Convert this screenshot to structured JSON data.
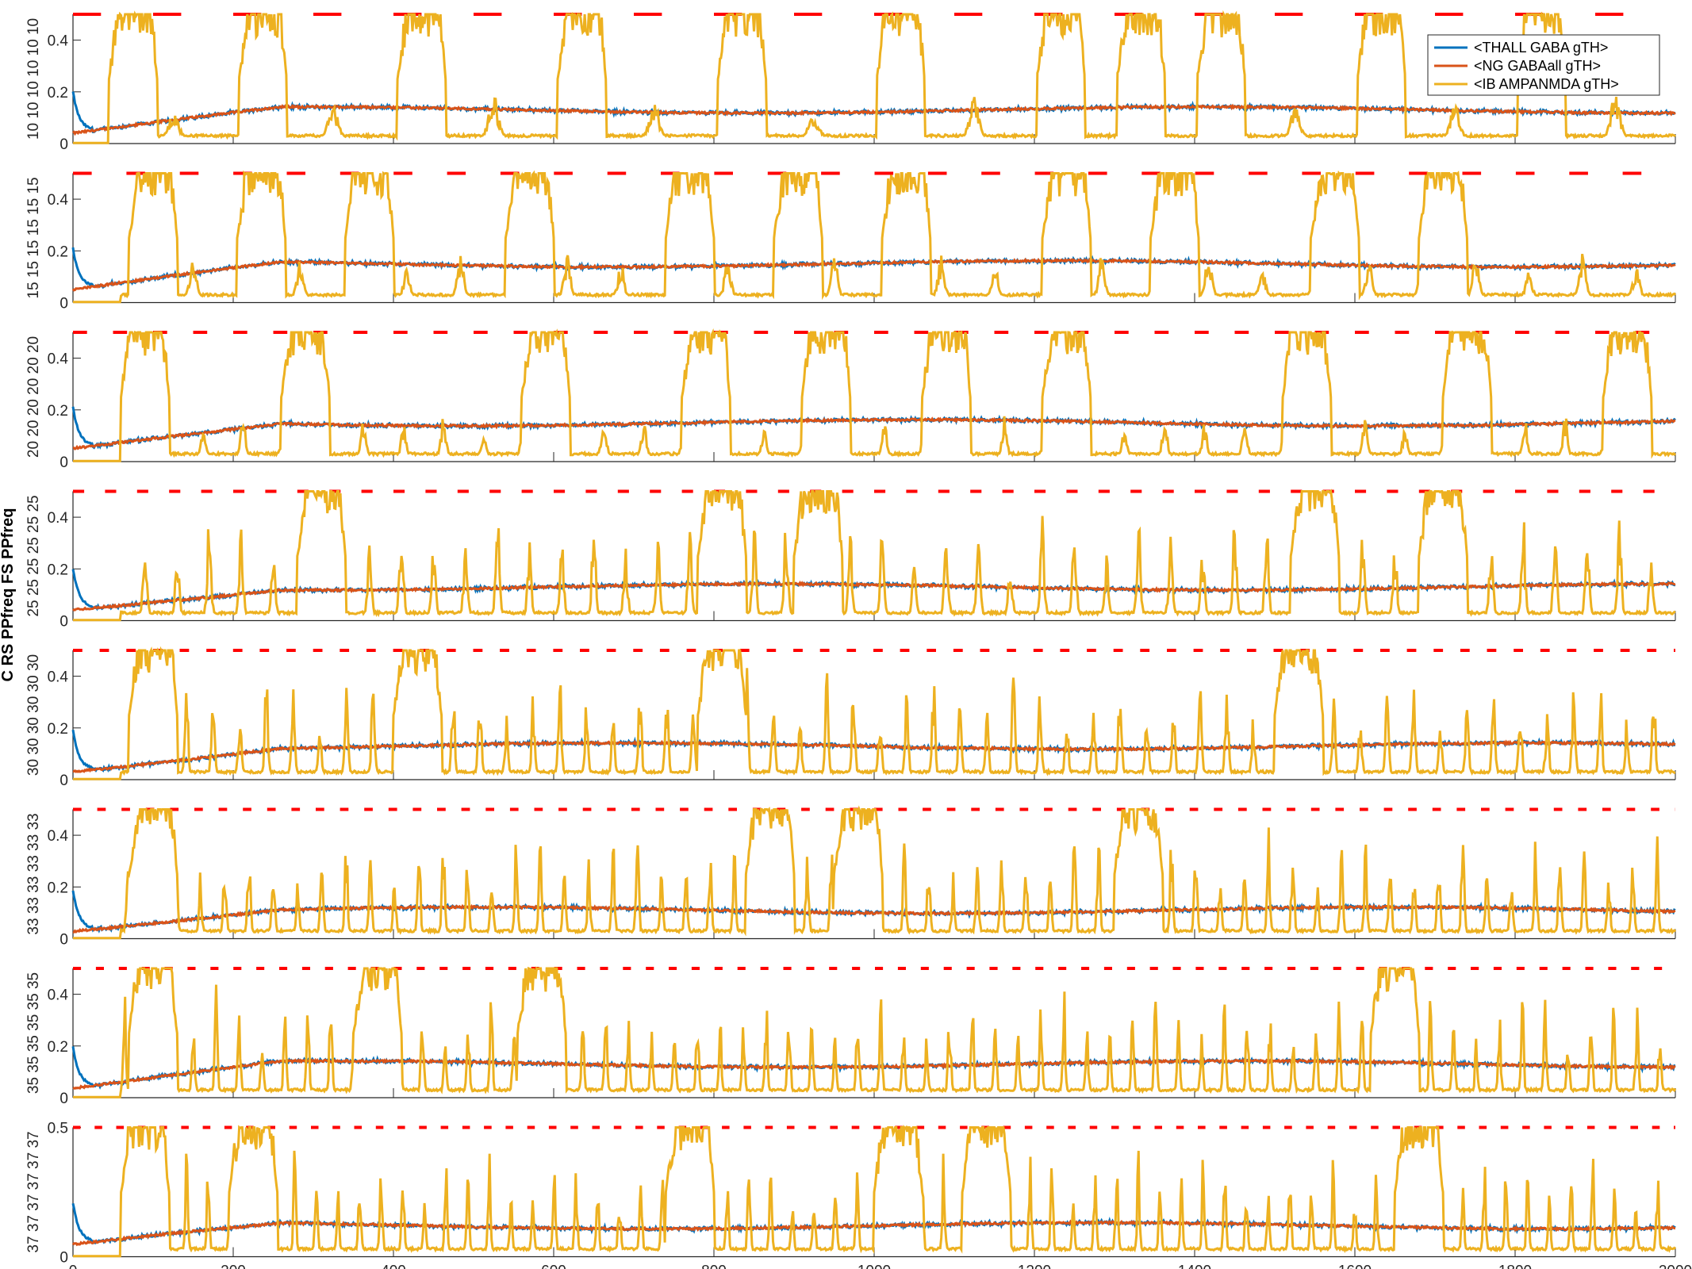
{
  "chart_data": {
    "type": "line",
    "x_axis": {
      "ticks": [
        0,
        200,
        400,
        600,
        800,
        1000,
        1200,
        1400,
        1600,
        1800,
        2000
      ],
      "tick_labels": [
        "0",
        "200",
        "400",
        "600",
        "800",
        "1000",
        "1200",
        "1400",
        "1600",
        "1800",
        "2000"
      ],
      "range": [
        0,
        2000
      ]
    },
    "ylabel": "C RS PPfreq FS PPfreq",
    "legend": {
      "placement": "top-right",
      "entries": [
        {
          "name": "<THALL GABA gTH>",
          "color": "#0072BD"
        },
        {
          "name": "<NG GABAall gTH>",
          "color": "#D95319"
        },
        {
          "name": "<IB AMPANMDA gTH>",
          "color": "#EDB120"
        }
      ]
    },
    "stimulus_marker": {
      "color": "#FF0000",
      "level": 0.5
    },
    "panels": [
      {
        "row_label": "10 10 10 10 10 10",
        "y_range": [
          0,
          0.5
        ],
        "ytick_labels": [
          "0",
          "0.2",
          "0.4"
        ],
        "stim_freq": 10,
        "stim_period_ms": 100,
        "baseline_blue": 0.13,
        "baseline_orange": 0.13,
        "burst_starts": [
          45,
          207,
          405,
          605,
          805,
          1003,
          1203,
          1303,
          1403,
          1603,
          1803
        ]
      },
      {
        "row_label": "15 15 15 15 15 15",
        "y_range": [
          0,
          0.5
        ],
        "ytick_labels": [
          "0",
          "0.2",
          "0.4"
        ],
        "stim_freq": 15,
        "stim_period_ms": 66.7,
        "baseline_blue": 0.15,
        "baseline_orange": 0.15,
        "burst_starts": [
          70,
          205,
          340,
          540,
          740,
          875,
          1010,
          1210,
          1345,
          1545,
          1680
        ]
      },
      {
        "row_label": "20 20 20 20 20 20",
        "y_range": [
          0,
          0.5
        ],
        "ytick_labels": [
          "0",
          "0.2",
          "0.4"
        ],
        "stim_freq": 20,
        "stim_period_ms": 50,
        "baseline_blue": 0.15,
        "baseline_orange": 0.15,
        "burst_starts": [
          60,
          260,
          560,
          760,
          910,
          1060,
          1210,
          1510,
          1710,
          1910
        ]
      },
      {
        "row_label": "25 25 25 25 25 25",
        "y_range": [
          0,
          0.5
        ],
        "ytick_labels": [
          "0",
          "0.2",
          "0.4"
        ],
        "stim_freq": 25,
        "stim_period_ms": 40,
        "baseline_blue": 0.13,
        "baseline_orange": 0.13,
        "burst_starts": [
          280,
          780,
          900,
          1520,
          1680
        ]
      },
      {
        "row_label": "30 30 30 30 30 30",
        "y_range": [
          0,
          0.5
        ],
        "ytick_labels": [
          "0",
          "0.2",
          "0.4"
        ],
        "stim_freq": 30,
        "stim_period_ms": 33.3,
        "baseline_blue": 0.13,
        "baseline_orange": 0.13,
        "burst_starts": [
          70,
          400,
          780,
          1500
        ]
      },
      {
        "row_label": "33 33 33 33 33 33",
        "y_range": [
          0,
          0.5
        ],
        "ytick_labels": [
          "0",
          "0.2",
          "0.4"
        ],
        "stim_freq": 33,
        "stim_period_ms": 30.3,
        "baseline_blue": 0.11,
        "baseline_orange": 0.11,
        "burst_starts": [
          70,
          840,
          950,
          1300
        ]
      },
      {
        "row_label": "35 35 35 35 35 35",
        "y_range": [
          0,
          0.5
        ],
        "ytick_labels": [
          "0",
          "0.2",
          "0.4"
        ],
        "stim_freq": 35,
        "stim_period_ms": 28.6,
        "baseline_blue": 0.13,
        "baseline_orange": 0.13,
        "burst_starts": [
          70,
          350,
          555,
          1620
        ]
      },
      {
        "row_label": "37 37 37 37 37 37",
        "y_range": [
          0,
          0.5
        ],
        "ytick_labels": [
          "0",
          "0.5"
        ],
        "stim_freq": 37,
        "stim_period_ms": 27,
        "baseline_blue": 0.12,
        "baseline_orange": 0.12,
        "burst_starts": [
          60,
          195,
          740,
          1000,
          1110,
          1650
        ]
      }
    ]
  }
}
